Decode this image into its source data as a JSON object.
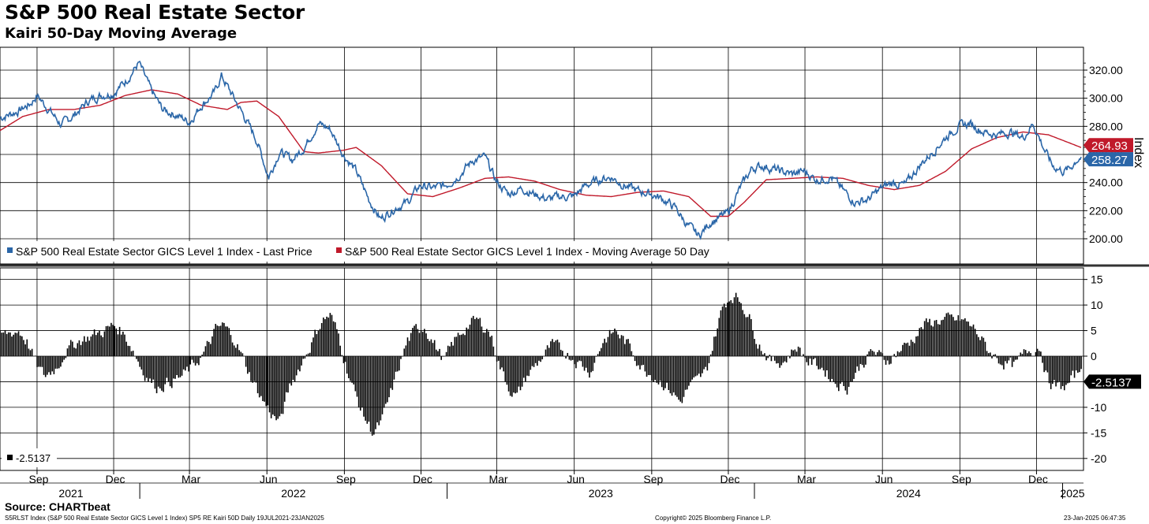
{
  "title": "S&P 500 Real Estate Sector",
  "subtitle": "Kairi 50-Day Moving Average",
  "source": "Source: CHARTbeat",
  "footer": {
    "left": "S5RLST Index (S&P 500 Real Estate Sector GICS Level 1 Index) SP5 RE Kairi 50D  Daily 19JUL2021-23JAN2025",
    "center": "Copyright© 2025 Bloomberg Finance L.P.",
    "right": "23-Jan-2025 06:47:35"
  },
  "colors": {
    "price": "#2a66a8",
    "ma": "#c0192a",
    "kairi": "#000000"
  },
  "chart_data": [
    {
      "type": "line",
      "ylabel": "Index",
      "ylim": [
        180,
        330
      ],
      "yticks": [
        "320.00",
        "300.00",
        "280.00",
        "260.00",
        "240.00",
        "220.00",
        "200.00"
      ],
      "ytick_values": [
        320,
        300,
        280,
        260,
        240,
        220,
        200
      ],
      "grid": true,
      "legend_placement": "bottom-left",
      "series": [
        {
          "name": "S&P 500 Real Estate Sector GICS Level 1 Index - Last Price",
          "color": "#2a66a8",
          "last_label": "258.27",
          "x": [
            "2021-07-19",
            "2021-08-10",
            "2021-08-24",
            "2021-09-01",
            "2021-09-15",
            "2021-09-30",
            "2021-10-15",
            "2021-11-01",
            "2021-11-15",
            "2021-12-01",
            "2021-12-15",
            "2021-12-31",
            "2022-01-14",
            "2022-01-28",
            "2022-02-14",
            "2022-03-01",
            "2022-03-15",
            "2022-03-31",
            "2022-04-08",
            "2022-04-21",
            "2022-05-06",
            "2022-05-20",
            "2022-06-03",
            "2022-06-16",
            "2022-07-01",
            "2022-07-15",
            "2022-08-01",
            "2022-08-15",
            "2022-08-31",
            "2022-09-15",
            "2022-09-30",
            "2022-10-14",
            "2022-10-31",
            "2022-11-15",
            "2022-11-30",
            "2022-12-15",
            "2022-12-30",
            "2023-01-13",
            "2023-02-01",
            "2023-02-15",
            "2023-03-01",
            "2023-03-15",
            "2023-03-31",
            "2023-04-14",
            "2023-05-01",
            "2023-05-15",
            "2023-05-31",
            "2023-06-15",
            "2023-06-30",
            "2023-07-14",
            "2023-07-31",
            "2023-08-15",
            "2023-08-31",
            "2023-09-15",
            "2023-09-29",
            "2023-10-13",
            "2023-10-27",
            "2023-11-10",
            "2023-11-30",
            "2023-12-15",
            "2023-12-29",
            "2024-01-12",
            "2024-01-31",
            "2024-02-15",
            "2024-02-29",
            "2024-03-15",
            "2024-04-01",
            "2024-04-16",
            "2024-04-30",
            "2024-05-15",
            "2024-05-31",
            "2024-06-14",
            "2024-06-28",
            "2024-07-15",
            "2024-07-31",
            "2024-08-15",
            "2024-08-30",
            "2024-09-13",
            "2024-09-30",
            "2024-10-15",
            "2024-10-31",
            "2024-11-15",
            "2024-11-27",
            "2024-12-10",
            "2024-12-20",
            "2025-01-02",
            "2025-01-10",
            "2025-01-17",
            "2025-01-23"
          ],
          "y": [
            286,
            291,
            296,
            302,
            292,
            281,
            288,
            298,
            302,
            304,
            312,
            325,
            306,
            292,
            288,
            283,
            295,
            304,
            316,
            302,
            286,
            270,
            244,
            262,
            256,
            265,
            282,
            278,
            260,
            248,
            228,
            214,
            222,
            226,
            238,
            236,
            238,
            244,
            256,
            258,
            240,
            232,
            236,
            232,
            228,
            230,
            230,
            238,
            242,
            244,
            238,
            234,
            232,
            228,
            222,
            210,
            202,
            212,
            218,
            236,
            250,
            252,
            248,
            246,
            248,
            242,
            244,
            234,
            226,
            228,
            236,
            240,
            238,
            252,
            262,
            272,
            280,
            282,
            276,
            274,
            276,
            272,
            282,
            264,
            252,
            248,
            250,
            256,
            258.27
          ]
        },
        {
          "name": "S&P 500 Real Estate Sector GICS Level 1 Index - Moving Average 50 Day",
          "color": "#c0192a",
          "last_label": "264.93",
          "x": [
            "2021-07-19",
            "2021-08-15",
            "2021-09-15",
            "2021-10-15",
            "2021-11-15",
            "2021-12-15",
            "2022-01-15",
            "2022-02-15",
            "2022-03-15",
            "2022-04-15",
            "2022-05-01",
            "2022-05-20",
            "2022-06-15",
            "2022-07-15",
            "2022-08-01",
            "2022-08-31",
            "2022-09-15",
            "2022-10-15",
            "2022-11-15",
            "2022-12-15",
            "2023-01-15",
            "2023-02-15",
            "2023-03-15",
            "2023-04-15",
            "2023-05-15",
            "2023-06-15",
            "2023-07-15",
            "2023-08-15",
            "2023-09-15",
            "2023-10-15",
            "2023-11-10",
            "2023-12-01",
            "2023-12-20",
            "2024-01-15",
            "2024-02-15",
            "2024-03-15",
            "2024-04-15",
            "2024-05-15",
            "2024-06-15",
            "2024-07-15",
            "2024-08-15",
            "2024-09-15",
            "2024-10-15",
            "2024-11-15",
            "2024-12-15",
            "2025-01-10",
            "2025-01-23"
          ],
          "y": [
            277,
            287,
            292,
            292,
            295,
            302,
            306,
            303,
            295,
            292,
            297,
            298,
            287,
            262,
            261,
            263,
            265,
            252,
            232,
            230,
            236,
            243,
            244,
            241,
            235,
            231,
            230,
            233,
            234,
            230,
            216,
            216,
            226,
            242,
            243,
            244,
            243,
            238,
            235,
            238,
            248,
            264,
            272,
            276,
            274,
            268,
            264.93
          ]
        }
      ],
      "legend": [
        "S&P 500 Real Estate Sector GICS Level 1 Index - Last Price",
        "S&P 500 Real Estate Sector GICS Level 1 Index - Moving Average 50 Day"
      ]
    },
    {
      "type": "bar",
      "ylim": [
        -22,
        17
      ],
      "yticks": [
        "15",
        "10",
        "5",
        "0",
        "-5",
        "-10",
        "-15",
        "-20"
      ],
      "ytick_values": [
        15,
        10,
        5,
        0,
        -5,
        -10,
        -15,
        -20
      ],
      "grid": true,
      "legend_placement": "bottom-left",
      "legend": [
        "-2.5137"
      ],
      "last_label": "-2.5137",
      "series": [
        {
          "name": "-2.5137",
          "color": "#000000",
          "x": [
            "2021-07-19",
            "2021-08-10",
            "2021-08-20",
            "2021-09-01",
            "2021-09-10",
            "2021-09-25",
            "2021-10-05",
            "2021-10-20",
            "2021-11-05",
            "2021-11-20",
            "2021-12-01",
            "2021-12-10",
            "2021-12-22",
            "2022-01-05",
            "2022-01-20",
            "2022-02-05",
            "2022-02-20",
            "2022-03-05",
            "2022-03-20",
            "2022-04-01",
            "2022-04-10",
            "2022-04-25",
            "2022-05-10",
            "2022-05-25",
            "2022-06-05",
            "2022-06-16",
            "2022-06-28",
            "2022-07-10",
            "2022-07-25",
            "2022-08-05",
            "2022-08-15",
            "2022-08-25",
            "2022-09-05",
            "2022-09-15",
            "2022-09-25",
            "2022-10-05",
            "2022-10-15",
            "2022-10-25",
            "2022-11-05",
            "2022-11-15",
            "2022-11-25",
            "2022-12-05",
            "2022-12-15",
            "2022-12-28",
            "2023-01-10",
            "2023-01-25",
            "2023-02-05",
            "2023-02-20",
            "2023-03-05",
            "2023-03-15",
            "2023-03-25",
            "2023-04-05",
            "2023-04-20",
            "2023-05-05",
            "2023-05-20",
            "2023-06-05",
            "2023-06-20",
            "2023-07-05",
            "2023-07-20",
            "2023-08-05",
            "2023-08-20",
            "2023-09-05",
            "2023-09-20",
            "2023-10-05",
            "2023-10-15",
            "2023-10-25",
            "2023-11-05",
            "2023-11-15",
            "2023-11-25",
            "2023-12-05",
            "2023-12-15",
            "2023-12-25",
            "2024-01-05",
            "2024-01-20",
            "2024-02-05",
            "2024-02-20",
            "2024-03-05",
            "2024-03-20",
            "2024-04-05",
            "2024-04-20",
            "2024-05-05",
            "2024-05-20",
            "2024-06-05",
            "2024-06-20",
            "2024-07-05",
            "2024-07-20",
            "2024-08-05",
            "2024-08-20",
            "2024-09-05",
            "2024-09-20",
            "2024-10-05",
            "2024-10-20",
            "2024-11-05",
            "2024-11-20",
            "2024-12-05",
            "2024-12-15",
            "2024-12-25",
            "2025-01-05",
            "2025-01-15",
            "2025-01-23"
          ],
          "y": [
            4,
            5,
            3,
            -2,
            -4,
            -2,
            1,
            3,
            4,
            5,
            6,
            5,
            2,
            -3,
            -6,
            -5,
            -4,
            -2,
            1,
            5,
            6,
            3,
            -3,
            -8,
            -11,
            -13,
            -6,
            -2,
            3,
            7,
            8,
            4,
            -3,
            -8,
            -12,
            -15,
            -13,
            -8,
            -2,
            3,
            5,
            6,
            3,
            -1,
            3,
            6,
            7,
            5,
            -2,
            -6,
            -8,
            -4,
            -1,
            2,
            1,
            -1,
            -3,
            3,
            5,
            2,
            -2,
            -4,
            -6,
            -9,
            -6,
            -5,
            -3,
            4,
            10,
            12,
            11,
            8,
            3,
            -1,
            -1,
            2,
            -1,
            -2,
            -5,
            -6,
            -2,
            1,
            -1,
            1,
            3,
            6,
            7,
            7,
            7,
            5,
            1,
            -1,
            -2,
            1,
            2,
            -5,
            -6,
            -6,
            -4,
            -2.5137
          ]
        }
      ]
    }
  ],
  "x_axis": {
    "months": [
      "Sep",
      "Dec",
      "Mar",
      "Jun",
      "Sep",
      "Dec",
      "Mar",
      "Jun",
      "Sep",
      "Dec",
      "Mar",
      "Jun",
      "Sep",
      "Dec"
    ],
    "month_dates": [
      "2021-09-01",
      "2021-12-01",
      "2022-03-01",
      "2022-06-01",
      "2022-09-01",
      "2022-12-01",
      "2023-03-01",
      "2023-06-01",
      "2023-09-01",
      "2023-12-01",
      "2024-03-01",
      "2024-06-01",
      "2024-09-01",
      "2024-12-01"
    ],
    "years": [
      "2021",
      "2022",
      "2023",
      "2024",
      "2025"
    ],
    "year_starts": [
      "2021-07-19",
      "2022-01-01",
      "2023-01-01",
      "2024-01-01",
      "2025-01-01"
    ],
    "range": [
      "2021-07-19",
      "2025-01-23"
    ]
  }
}
